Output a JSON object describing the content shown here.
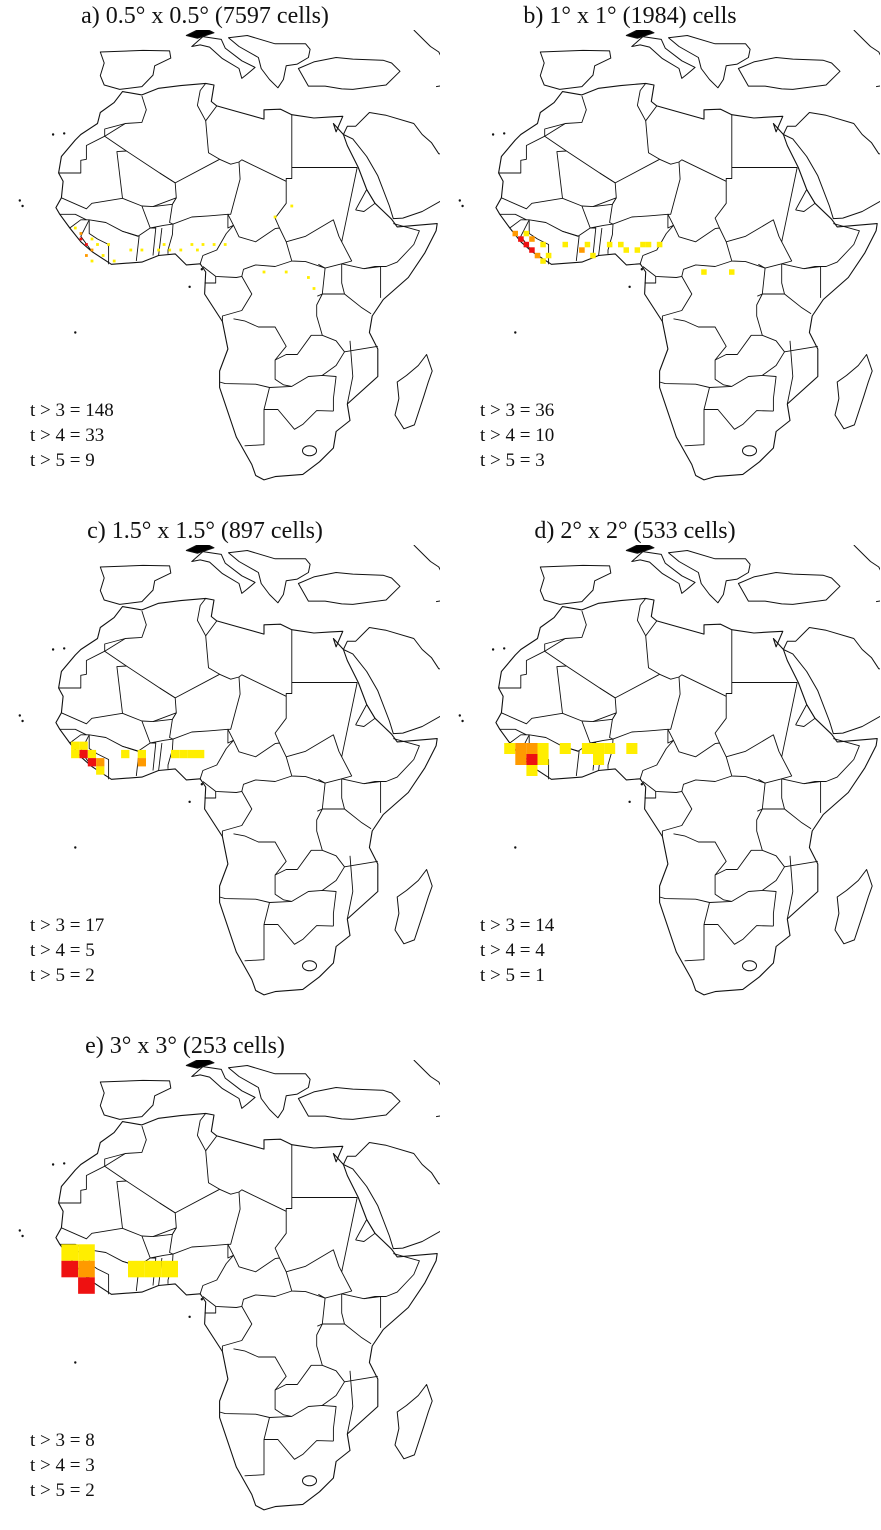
{
  "figure": {
    "panels": [
      {
        "id": "a",
        "title": "a) 0.5° x 0.5° (7597 cells)",
        "stats": [
          "t > 3 = 148",
          "t > 4 = 33",
          "t > 5 = 9"
        ],
        "scatter_hotspots": true,
        "cells": [
          {
            "lon": -13,
            "lat": 9,
            "cls": "t5"
          },
          {
            "lon": -12,
            "lat": 8,
            "cls": "t5"
          },
          {
            "lon": -11,
            "lat": 7,
            "cls": "t4"
          },
          {
            "lon": -13,
            "lat": 10,
            "cls": "t4"
          },
          {
            "lon": -11,
            "lat": 9,
            "cls": "t3"
          },
          {
            "lon": -10,
            "lat": 8,
            "cls": "t3"
          },
          {
            "lon": -9,
            "lat": 6,
            "cls": "t3"
          },
          {
            "lon": -14,
            "lat": 11,
            "cls": "t3"
          },
          {
            "lon": -8,
            "lat": 8,
            "cls": "t3"
          },
          {
            "lon": -4,
            "lat": 7,
            "cls": "t3"
          },
          {
            "lon": -2,
            "lat": 7,
            "cls": "t3"
          },
          {
            "lon": 1,
            "lat": 7,
            "cls": "t3"
          },
          {
            "lon": 2,
            "lat": 8,
            "cls": "t3"
          },
          {
            "lon": 3,
            "lat": 7,
            "cls": "t3"
          },
          {
            "lon": 5,
            "lat": 7,
            "cls": "t3"
          },
          {
            "lon": 7,
            "lat": 8,
            "cls": "t3"
          },
          {
            "lon": 8,
            "lat": 7,
            "cls": "t3"
          },
          {
            "lon": 9,
            "lat": 8,
            "cls": "t3"
          },
          {
            "lon": 11,
            "lat": 8,
            "cls": "t3"
          },
          {
            "lon": 13,
            "lat": 8,
            "cls": "t3"
          },
          {
            "lon": 22,
            "lat": 13,
            "cls": "t3"
          },
          {
            "lon": 25,
            "lat": 15,
            "cls": "t3"
          },
          {
            "lon": 24,
            "lat": 3,
            "cls": "t3"
          },
          {
            "lon": 20,
            "lat": 3,
            "cls": "t3"
          },
          {
            "lon": 28,
            "lat": 2,
            "cls": "t3"
          },
          {
            "lon": 29,
            "lat": 0,
            "cls": "t3"
          },
          {
            "lon": -12,
            "lat": 6,
            "cls": "t4"
          },
          {
            "lon": -11,
            "lat": 5,
            "cls": "t3"
          },
          {
            "lon": -7,
            "lat": 5,
            "cls": "t3"
          }
        ]
      },
      {
        "id": "b",
        "title": "b) 1° x 1° (1984) cells",
        "stats": [
          "t > 3 = 36",
          "t > 4 = 10",
          "t > 5 = 3"
        ],
        "cells": [
          {
            "lon": -13,
            "lat": 9,
            "cls": "t5"
          },
          {
            "lon": -12,
            "lat": 8,
            "cls": "t5"
          },
          {
            "lon": -11,
            "lat": 7,
            "cls": "t5"
          },
          {
            "lon": -14,
            "lat": 10,
            "cls": "t4"
          },
          {
            "lon": -11,
            "lat": 9,
            "cls": "t4"
          },
          {
            "lon": -10,
            "lat": 6,
            "cls": "t4"
          },
          {
            "lon": -12,
            "lat": 10,
            "cls": "t3"
          },
          {
            "lon": -9,
            "lat": 8,
            "cls": "t3"
          },
          {
            "lon": -8,
            "lat": 6,
            "cls": "t3"
          },
          {
            "lon": -5,
            "lat": 8,
            "cls": "t3"
          },
          {
            "lon": -2,
            "lat": 7,
            "cls": "t4"
          },
          {
            "lon": -1,
            "lat": 8,
            "cls": "t3"
          },
          {
            "lon": 0,
            "lat": 6,
            "cls": "t3"
          },
          {
            "lon": 3,
            "lat": 8,
            "cls": "t3"
          },
          {
            "lon": 5,
            "lat": 8,
            "cls": "t3"
          },
          {
            "lon": 6,
            "lat": 7,
            "cls": "t3"
          },
          {
            "lon": 8,
            "lat": 7,
            "cls": "t3"
          },
          {
            "lon": 9,
            "lat": 8,
            "cls": "t3"
          },
          {
            "lon": 10,
            "lat": 8,
            "cls": "t3"
          },
          {
            "lon": 12,
            "lat": 8,
            "cls": "t3"
          },
          {
            "lon": 25,
            "lat": 3,
            "cls": "t3"
          },
          {
            "lon": 20,
            "lat": 3,
            "cls": "t3"
          },
          {
            "lon": -9,
            "lat": 5,
            "cls": "t3"
          }
        ]
      },
      {
        "id": "c",
        "title": "c) 1.5° x 1.5° (897 cells)",
        "stats": [
          "t > 3 = 17",
          "t > 4 = 5",
          "t > 5 = 2"
        ],
        "cells": [
          {
            "lon": -14,
            "lat": 10.5,
            "cls": "t3"
          },
          {
            "lon": -12.5,
            "lat": 10.5,
            "cls": "t3"
          },
          {
            "lon": -14,
            "lat": 9,
            "cls": "t3"
          },
          {
            "lon": -12.5,
            "lat": 9,
            "cls": "t5"
          },
          {
            "lon": -11,
            "lat": 9,
            "cls": "t3"
          },
          {
            "lon": -11,
            "lat": 7.5,
            "cls": "t5"
          },
          {
            "lon": -9.5,
            "lat": 7.5,
            "cls": "t4"
          },
          {
            "lon": -9.5,
            "lat": 6,
            "cls": "t3"
          },
          {
            "lon": -5,
            "lat": 9,
            "cls": "t3"
          },
          {
            "lon": -2,
            "lat": 9,
            "cls": "t3"
          },
          {
            "lon": -2,
            "lat": 7.5,
            "cls": "t4"
          },
          {
            "lon": 4,
            "lat": 9,
            "cls": "t3"
          },
          {
            "lon": 5.5,
            "lat": 9,
            "cls": "t3"
          },
          {
            "lon": 7,
            "lat": 9,
            "cls": "t3"
          },
          {
            "lon": 8.5,
            "lat": 9,
            "cls": "t3"
          }
        ]
      },
      {
        "id": "d",
        "title": "d) 2° x 2° (533 cells)",
        "stats": [
          "t > 3 = 14",
          "t > 4 = 4",
          "t > 5 = 1"
        ],
        "cells": [
          {
            "lon": -15,
            "lat": 10,
            "cls": "t3"
          },
          {
            "lon": -13,
            "lat": 10,
            "cls": "t4"
          },
          {
            "lon": -11,
            "lat": 10,
            "cls": "t4"
          },
          {
            "lon": -9,
            "lat": 10,
            "cls": "t3"
          },
          {
            "lon": -13,
            "lat": 8,
            "cls": "t4"
          },
          {
            "lon": -11,
            "lat": 8,
            "cls": "t5"
          },
          {
            "lon": -9,
            "lat": 8,
            "cls": "t3"
          },
          {
            "lon": -11,
            "lat": 6,
            "cls": "t3"
          },
          {
            "lon": -5,
            "lat": 10,
            "cls": "t3"
          },
          {
            "lon": -1,
            "lat": 10,
            "cls": "t3"
          },
          {
            "lon": 1,
            "lat": 10,
            "cls": "t3"
          },
          {
            "lon": 1,
            "lat": 8,
            "cls": "t3"
          },
          {
            "lon": 3,
            "lat": 10,
            "cls": "t3"
          },
          {
            "lon": 7,
            "lat": 10,
            "cls": "t3"
          }
        ]
      },
      {
        "id": "e",
        "title": "e) 3° x 3° (253 cells)",
        "stats": [
          "t > 3 = 8",
          "t > 4 = 3",
          "t > 5 = 2"
        ],
        "cells": [
          {
            "lon": -15,
            "lat": 12,
            "cls": "t3"
          },
          {
            "lon": -12,
            "lat": 12,
            "cls": "t3"
          },
          {
            "lon": -15,
            "lat": 9,
            "cls": "t5"
          },
          {
            "lon": -12,
            "lat": 9,
            "cls": "t4"
          },
          {
            "lon": -12,
            "lat": 6,
            "cls": "t5"
          },
          {
            "lon": -3,
            "lat": 9,
            "cls": "t3"
          },
          {
            "lon": 0,
            "lat": 9,
            "cls": "t3"
          },
          {
            "lon": 3,
            "lat": 9,
            "cls": "t3"
          }
        ]
      }
    ]
  }
}
